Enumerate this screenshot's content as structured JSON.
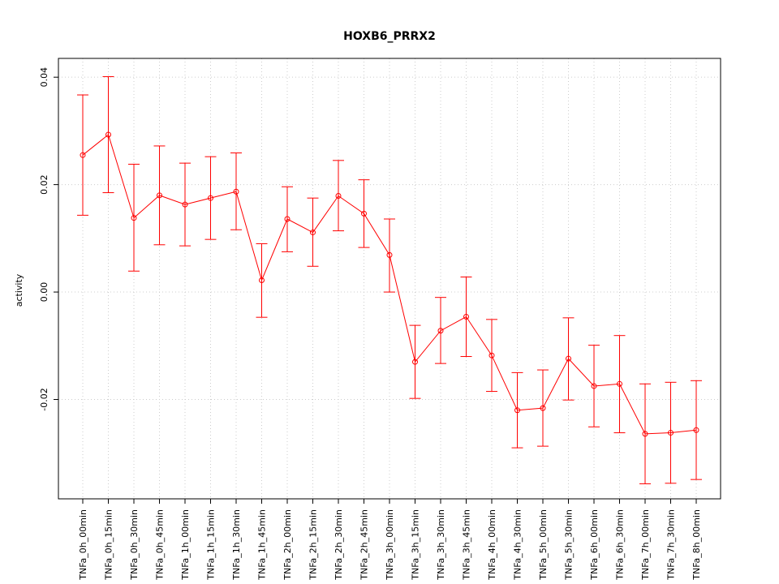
{
  "chart_data": {
    "type": "line",
    "title": "HOXB6_PRRX2",
    "xlabel": "",
    "ylabel": "activity",
    "ylim": [
      -0.0385,
      0.0435
    ],
    "yticks": [
      -0.02,
      0.0,
      0.02,
      0.04
    ],
    "ytick_labels": [
      "-0.02",
      "0.00",
      "0.02",
      "0.04"
    ],
    "grid": true,
    "legend": "none",
    "categories": [
      "TNFa_0h_00min",
      "TNFa_0h_15min",
      "TNFa_0h_30min",
      "TNFa_0h_45min",
      "TNFa_1h_00min",
      "TNFa_1h_15min",
      "TNFa_1h_30min",
      "TNFa_1h_45min",
      "TNFa_2h_00min",
      "TNFa_2h_15min",
      "TNFa_2h_30min",
      "TNFa_2h_45min",
      "TNFa_3h_00min",
      "TNFa_3h_15min",
      "TNFa_3h_30min",
      "TNFa_3h_45min",
      "TNFa_4h_00min",
      "TNFa_4h_30min",
      "TNFa_5h_00min",
      "TNFa_5h_30min",
      "TNFa_6h_00min",
      "TNFa_6h_30min",
      "TNFa_7h_00min",
      "TNFa_7h_30min",
      "TNFa_8h_00min"
    ],
    "series": [
      {
        "color": "#ff0000",
        "values": [
          0.0255,
          0.0293,
          0.0138,
          0.018,
          0.0163,
          0.0175,
          0.0187,
          0.0022,
          0.0136,
          0.0111,
          0.0179,
          0.0146,
          0.0069,
          -0.013,
          -0.0072,
          -0.0046,
          -0.0118,
          -0.022,
          -0.0216,
          -0.0124,
          -0.0175,
          -0.0171,
          -0.0264,
          -0.0262,
          -0.0257
        ],
        "lower": [
          0.0143,
          0.0185,
          0.0039,
          0.0088,
          0.0086,
          0.0098,
          0.0116,
          -0.0047,
          0.0075,
          0.0048,
          0.0114,
          0.0083,
          0.0,
          -0.0198,
          -0.0133,
          -0.012,
          -0.0185,
          -0.029,
          -0.0287,
          -0.0201,
          -0.0251,
          -0.0262,
          -0.0357,
          -0.0356,
          -0.0349
        ],
        "upper": [
          0.0367,
          0.0401,
          0.0238,
          0.0272,
          0.024,
          0.0252,
          0.0259,
          0.009,
          0.0196,
          0.0175,
          0.0245,
          0.0209,
          0.0136,
          -0.0062,
          -0.001,
          0.0028,
          -0.0051,
          -0.015,
          -0.0145,
          -0.0048,
          -0.0099,
          -0.0081,
          -0.0171,
          -0.0168,
          -0.0165
        ]
      }
    ]
  }
}
